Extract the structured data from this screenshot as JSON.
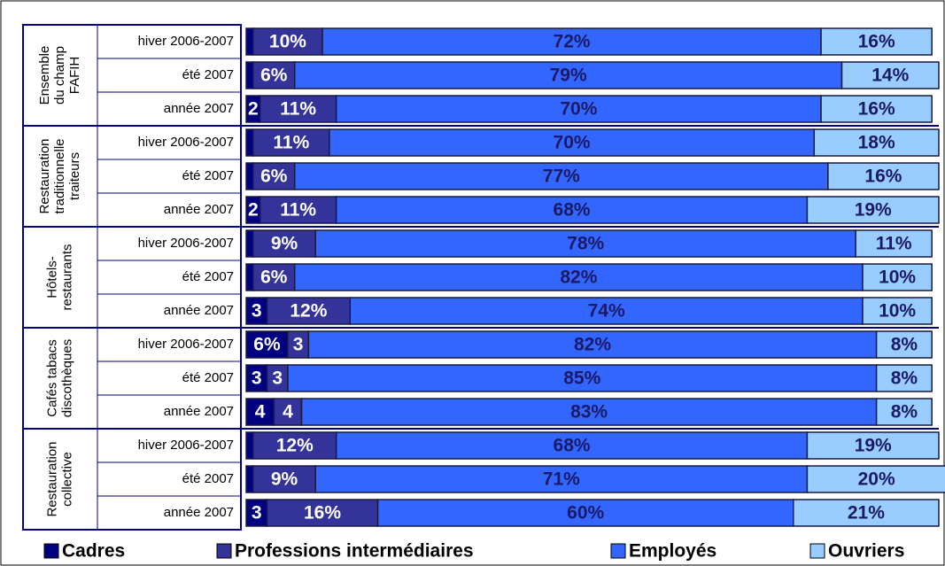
{
  "chart_data": {
    "type": "stacked-bar-horizontal",
    "groups": [
      [
        "Ensemble",
        "du champ",
        "FAFIH"
      ],
      [
        "Restauration",
        "traditionnelle",
        "traiteurs"
      ],
      [
        "Hôtels-",
        "restaurants"
      ],
      [
        "Cafés tabacs",
        "discothèques"
      ],
      [
        "Restauration",
        "collective"
      ]
    ],
    "categories": [
      "hiver 2006-2007",
      "été 2007",
      "année 2007",
      "hiver 2006-2007",
      "été 2007",
      "année 2007",
      "hiver 2006-2007",
      "été 2007",
      "année 2007",
      "hiver 2006-2007",
      "été 2007",
      "année 2007",
      "hiver 2006-2007",
      "été 2007",
      "année 2007"
    ],
    "xlim": [
      0,
      100
    ],
    "series": [
      {
        "name": "Cadres",
        "color": "#000080",
        "label_color": "#ffffff",
        "values": [
          1,
          1,
          2,
          1,
          1,
          2,
          1,
          1,
          3,
          6,
          3,
          4,
          1,
          1,
          3
        ],
        "value_labels": [
          null,
          null,
          "2",
          null,
          null,
          "2",
          null,
          null,
          "3",
          "6%",
          "3",
          "4",
          null,
          null,
          "3"
        ]
      },
      {
        "name": "Professions intermédiaires",
        "color": "#333399",
        "label_color": "#ffffff",
        "values": [
          10,
          6,
          11,
          11,
          6,
          11,
          9,
          6,
          12,
          3,
          3,
          4,
          12,
          9,
          16
        ],
        "value_labels": [
          "10%",
          "6%",
          "11%",
          "11%",
          "6%",
          "11%",
          "9%",
          "6%",
          "12%",
          "3",
          "3",
          "4",
          "12%",
          "9%",
          "16%"
        ]
      },
      {
        "name": "Employés",
        "color": "#3366ff",
        "label_color": "#1a1a66",
        "values": [
          72,
          79,
          70,
          70,
          77,
          68,
          78,
          82,
          74,
          82,
          85,
          83,
          68,
          71,
          60
        ],
        "value_labels": [
          "72%",
          "79%",
          "70%",
          "70%",
          "77%",
          "68%",
          "78%",
          "82%",
          "74%",
          "82%",
          "85%",
          "83%",
          "68%",
          "71%",
          "60%"
        ]
      },
      {
        "name": "Ouvriers",
        "color": "#99ccff",
        "label_color": "#1a1a66",
        "values": [
          16,
          14,
          16,
          18,
          16,
          19,
          11,
          10,
          10,
          8,
          8,
          8,
          19,
          20,
          21
        ],
        "value_labels": [
          "16%",
          "14%",
          "16%",
          "18%",
          "16%",
          "19%",
          "11%",
          "10%",
          "10%",
          "8%",
          "8%",
          "8%",
          "19%",
          "20%",
          "21%"
        ]
      }
    ]
  }
}
